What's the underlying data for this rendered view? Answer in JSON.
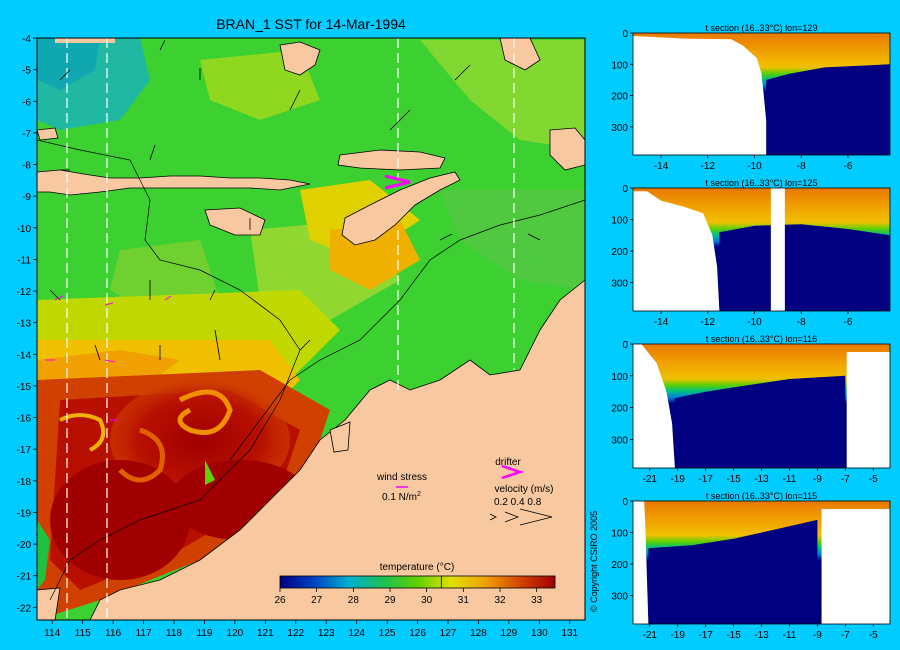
{
  "chart_data": [
    {
      "type": "heatmap",
      "title": "BRAN_1 SST for 14-Mar-1994",
      "x_ticks": [
        114,
        115,
        116,
        117,
        118,
        119,
        120,
        121,
        122,
        123,
        124,
        125,
        126,
        127,
        128,
        129,
        130,
        131
      ],
      "y_ticks": [
        -4,
        -5,
        -6,
        -7,
        -8,
        -9,
        -10,
        -11,
        -12,
        -13,
        -14,
        -15,
        -16,
        -17,
        -18,
        -19,
        -20,
        -21,
        -22
      ],
      "xlim": [
        113.5,
        131.5
      ],
      "ylim": [
        -22.4,
        -4.0
      ],
      "colorbar": {
        "label": "temperature (°C)",
        "ticks": [
          26,
          27,
          28,
          29,
          30,
          31,
          32,
          33
        ],
        "range": [
          26,
          33.5
        ]
      },
      "section_lines_lon": [
        114.5,
        115.8,
        125.4,
        129.2
      ],
      "legend": {
        "wind_label": "wind stress",
        "wind_value": "0.1 N/m",
        "wind_exp": "2",
        "drifter_label": "drifter",
        "velocity_label": "velocity (m/s)",
        "velocity_values": "0.2 0.4 0.8"
      }
    },
    {
      "type": "heatmap",
      "title": "t section (16..33°C) lon=129",
      "x_ticks": [
        -14,
        -12,
        -10,
        -8,
        -6
      ],
      "xlim": [
        -15.2,
        -4.2
      ],
      "y_ticks": [
        0,
        100,
        200,
        300
      ],
      "ylim": [
        0,
        390
      ],
      "land_boundary": [
        [
          -15.2,
          10
        ],
        [
          -14.5,
          12
        ],
        [
          -13,
          18
        ],
        [
          -11,
          20
        ],
        [
          -10.5,
          40
        ],
        [
          -9.9,
          80
        ],
        [
          -9.7,
          130
        ],
        [
          -9.6,
          200
        ],
        [
          -9.5,
          280
        ],
        [
          -9.5,
          390
        ]
      ],
      "thermocline": [
        [
          -9.5,
          150
        ],
        [
          -8.5,
          130
        ],
        [
          -7,
          110
        ],
        [
          -5.5,
          105
        ],
        [
          -4.2,
          100
        ]
      ]
    },
    {
      "type": "heatmap",
      "title": "t section (16..33°C) lon=125",
      "x_ticks": [
        -14,
        -12,
        -10,
        -8,
        -6
      ],
      "xlim": [
        -15.2,
        -4.2
      ],
      "y_ticks": [
        0,
        100,
        200,
        300
      ],
      "ylim": [
        0,
        390
      ],
      "land_boundary": [
        [
          -14.6,
          10
        ],
        [
          -14,
          40
        ],
        [
          -13,
          60
        ],
        [
          -12.2,
          80
        ],
        [
          -11.8,
          150
        ],
        [
          -11.6,
          250
        ],
        [
          -11.5,
          390
        ]
      ],
      "gap": [
        -9.3,
        -8.7
      ],
      "thermocline": [
        [
          -11.5,
          140
        ],
        [
          -10,
          120
        ],
        [
          -8,
          115
        ],
        [
          -6,
          130
        ],
        [
          -4.2,
          150
        ]
      ]
    },
    {
      "type": "heatmap",
      "title": "t section (16..33°C) lon=116",
      "x_ticks": [
        -21,
        -19,
        -17,
        -15,
        -13,
        -11,
        -9,
        -7,
        -5
      ],
      "xlim": [
        -22.2,
        -3.8
      ],
      "y_ticks": [
        0,
        100,
        200,
        300
      ],
      "ylim": [
        0,
        390
      ],
      "land_boundary": [
        [
          -21.6,
          0
        ],
        [
          -20.5,
          60
        ],
        [
          -19.8,
          150
        ],
        [
          -19.4,
          250
        ],
        [
          -19.2,
          390
        ]
      ],
      "right_land_lon": -6.9,
      "thermocline": [
        [
          -19.2,
          170
        ],
        [
          -17,
          150
        ],
        [
          -14,
          130
        ],
        [
          -11,
          110
        ],
        [
          -7,
          100
        ]
      ]
    },
    {
      "type": "heatmap",
      "title": "t section (16..33°C) lon=115",
      "x_ticks": [
        -21,
        -19,
        -17,
        -15,
        -13,
        -11,
        -9,
        -7,
        -5
      ],
      "xlim": [
        -22.2,
        -3.8
      ],
      "y_ticks": [
        0,
        100,
        200,
        300
      ],
      "ylim": [
        0,
        390
      ],
      "land_boundary": [
        [
          -21.4,
          0
        ],
        [
          -21.3,
          100
        ],
        [
          -21.2,
          250
        ],
        [
          -21.1,
          390
        ]
      ],
      "right_land_lon": -8.7,
      "thermocline": [
        [
          -21.1,
          150
        ],
        [
          -18,
          140
        ],
        [
          -15,
          120
        ],
        [
          -12,
          90
        ],
        [
          -9,
          60
        ]
      ]
    }
  ],
  "copyright": "© Copyright CSIRO 2005"
}
